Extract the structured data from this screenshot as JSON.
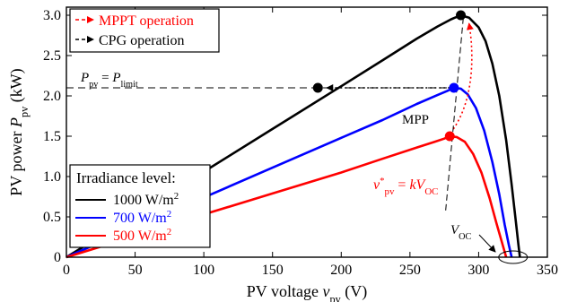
{
  "chart_data": {
    "type": "line",
    "title": "",
    "xlabel": {
      "text": "PV voltage ",
      "var": "v",
      "sub": "pv",
      "unit": " (V)"
    },
    "ylabel": {
      "text": "PV power ",
      "var": "P",
      "sub": "pv",
      "unit": " (kW)"
    },
    "xlim": [
      0,
      350
    ],
    "ylim": [
      0,
      3.1
    ],
    "xticks": [
      0,
      50,
      100,
      150,
      200,
      250,
      300,
      350
    ],
    "yticks": [
      0,
      0.5,
      1.0,
      1.5,
      2.0,
      2.5,
      3.0
    ],
    "ytick_labels": [
      "0",
      "0.5",
      "1.0",
      "1.5",
      "2.0",
      "2.5",
      "3.0"
    ],
    "grid": false,
    "series": [
      {
        "name": "1000 W/m2",
        "color": "#000000",
        "points": [
          [
            0,
            0
          ],
          [
            20,
            0.21
          ],
          [
            50,
            0.53
          ],
          [
            100,
            1.06
          ],
          [
            150,
            1.59
          ],
          [
            200,
            2.12
          ],
          [
            230,
            2.44
          ],
          [
            255,
            2.71
          ],
          [
            270,
            2.86
          ],
          [
            280,
            2.95
          ],
          [
            287,
            3.0
          ],
          [
            293,
            2.97
          ],
          [
            300,
            2.85
          ],
          [
            305,
            2.68
          ],
          [
            310,
            2.4
          ],
          [
            315,
            2.0
          ],
          [
            320,
            1.45
          ],
          [
            324,
            0.9
          ],
          [
            327,
            0.45
          ],
          [
            329,
            0.15
          ],
          [
            330,
            0
          ]
        ]
      },
      {
        "name": "700 W/m2",
        "color": "#0000ff",
        "points": [
          [
            0,
            0
          ],
          [
            20,
            0.15
          ],
          [
            50,
            0.37
          ],
          [
            100,
            0.74
          ],
          [
            150,
            1.11
          ],
          [
            200,
            1.48
          ],
          [
            230,
            1.7
          ],
          [
            255,
            1.9
          ],
          [
            270,
            2.01
          ],
          [
            277,
            2.06
          ],
          [
            282,
            2.1
          ],
          [
            287,
            2.09
          ],
          [
            292,
            2.02
          ],
          [
            298,
            1.85
          ],
          [
            304,
            1.57
          ],
          [
            310,
            1.18
          ],
          [
            315,
            0.78
          ],
          [
            319,
            0.4
          ],
          [
            322,
            0.15
          ],
          [
            324,
            0
          ]
        ]
      },
      {
        "name": "500 W/m2",
        "color": "#ff0000",
        "points": [
          [
            0,
            0
          ],
          [
            20,
            0.105
          ],
          [
            50,
            0.265
          ],
          [
            100,
            0.53
          ],
          [
            150,
            0.79
          ],
          [
            200,
            1.05
          ],
          [
            230,
            1.22
          ],
          [
            255,
            1.36
          ],
          [
            268,
            1.43
          ],
          [
            275,
            1.47
          ],
          [
            279,
            1.5
          ],
          [
            284,
            1.49
          ],
          [
            290,
            1.43
          ],
          [
            296,
            1.28
          ],
          [
            302,
            1.05
          ],
          [
            308,
            0.73
          ],
          [
            313,
            0.42
          ],
          [
            317,
            0.18
          ],
          [
            320,
            0
          ]
        ]
      }
    ],
    "markers": [
      {
        "x": 287,
        "y": 3.0,
        "color": "#000000"
      },
      {
        "x": 282,
        "y": 2.1,
        "color": "#0000ff"
      },
      {
        "x": 279,
        "y": 1.5,
        "color": "#ff0000"
      },
      {
        "x": 183,
        "y": 2.1,
        "color": "#000000"
      }
    ],
    "limit_line": {
      "y": 2.1,
      "label_p": "P",
      "label_sub": "pv",
      "label_eq": " = ",
      "label_p2": "P",
      "label_sub2": "limit"
    },
    "legend_top": {
      "placement": "top-left",
      "items": [
        {
          "label": "MPPT operation",
          "color": "#ff0000"
        },
        {
          "label": "CPG operation",
          "color": "#000000"
        }
      ]
    },
    "legend_bottom": {
      "placement": "bottom-left",
      "title": "Irradiance level:",
      "items": [
        {
          "label": "1000 W/m",
          "sup": "2",
          "color": "#000000"
        },
        {
          "label": "700 W/m",
          "sup": "2",
          "color": "#0000ff"
        },
        {
          "label": "500 W/m",
          "sup": "2",
          "color": "#ff0000"
        }
      ]
    },
    "annotations": {
      "mpp": "MPP",
      "vref": {
        "var": "v",
        "sup": "*",
        "sub": "pv",
        "eq": " = ",
        "k": "kV",
        "sub2": "OC"
      },
      "voc": {
        "var": "V",
        "sub": "OC"
      }
    }
  }
}
